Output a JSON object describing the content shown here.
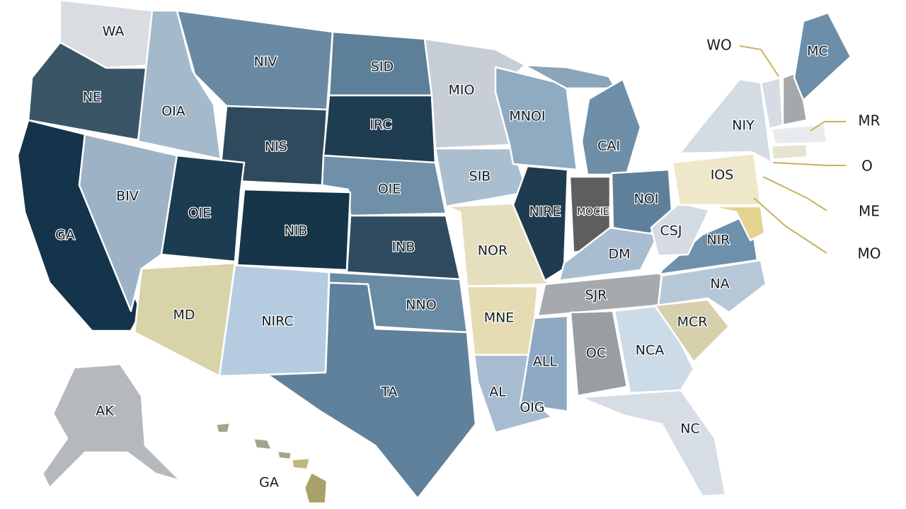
{
  "map": {
    "state_labels": [
      "WA",
      "NIV",
      "SID",
      "MIO",
      "NE",
      "OIA",
      "NIS",
      "IRC",
      "MNOI",
      "CAI",
      "NIY",
      "MC",
      "BIV",
      "GA",
      "OIE",
      "NIB",
      "OIE",
      "SIB",
      "NIRE",
      "MOCIE",
      "NOI",
      "IOS",
      "CSJ",
      "NIR",
      "DM",
      "INB",
      "NOR",
      "MD",
      "NIRC",
      "NNO",
      "MNE",
      "SJR",
      "NA",
      "MCR",
      "ALL",
      "OC",
      "NCA",
      "AL",
      "OIG",
      "TA",
      "NC",
      "AK",
      "GA"
    ],
    "callouts": [
      "WO",
      "MR",
      "O",
      "ME",
      "MO"
    ]
  }
}
